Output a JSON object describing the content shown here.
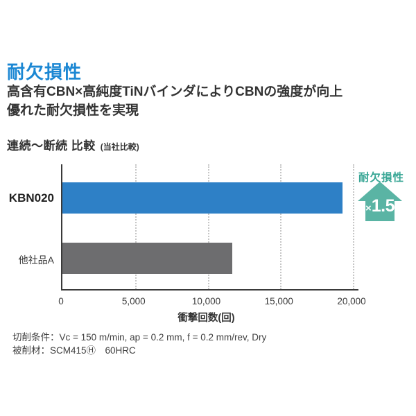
{
  "page": {
    "title": "耐欠損性",
    "subtitle_line1": "高含有CBN×高純度TiNバインダによりCBNの強度が向上",
    "subtitle_line2": "優れた耐欠損性を実現",
    "colors": {
      "title_blue": "#1b87d3",
      "bar_blue": "#2e80c6",
      "bar_gray": "#6d6d6f",
      "teal": "#5ab4a4",
      "teal_text": "#38a695",
      "axis": "#3a3a3a",
      "gridline": "#c6c6c6"
    }
  },
  "chart_header": {
    "title": "連続〜断続 比較",
    "note": "(当社比較)"
  },
  "chart_data": {
    "type": "bar",
    "orientation": "horizontal",
    "title": "連続〜断続 比較 (当社比較)",
    "categories": [
      "KBN020",
      "他社品A"
    ],
    "values": [
      19300,
      11700
    ],
    "bar_colors": [
      "#2e80c6",
      "#6d6d6f"
    ],
    "xlabel": "衝撃回数(回)",
    "ylabel": "",
    "xlim": [
      0,
      20000
    ],
    "xticks": [
      0,
      5000,
      10000,
      15000,
      20000
    ],
    "xtick_labels": [
      "0",
      "5,000",
      "10,000",
      "15,000",
      "20,000"
    ],
    "grid": "vertical-dashed",
    "legend": "none",
    "annotation": {
      "label": "耐欠損性",
      "multiplier_sign": "×",
      "multiplier_value": "1.5",
      "color": "#5ab4a4"
    }
  },
  "footer": {
    "line1": "切削条件：Vc = 150 m/min, ap = 0.2 mm, f = 0.2 mm/rev,  Dry",
    "line2": "被削材：SCM415Ⓗ　60HRC"
  }
}
